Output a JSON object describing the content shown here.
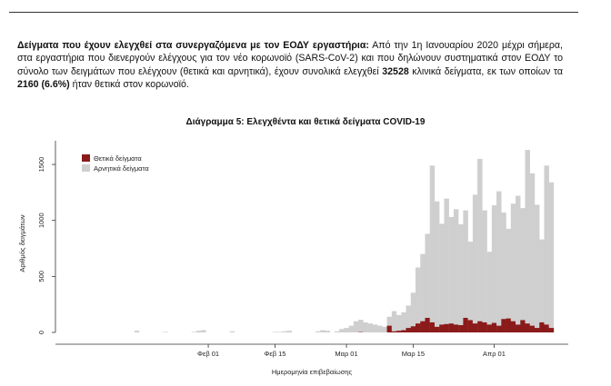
{
  "paragraph": {
    "heading": "Δείγματα που έχουν ελεγχθεί στα συνεργαζόμενα με τον ΕΟΔΥ εργαστήρια:",
    "text1": " Από την 1η Ιανουαρίου 2020 μέχρι σήμερα, στα εργαστήρια που διενεργούν ελέγχους για τον νέο κορωνοϊό (SARS-CoV-2) και που δηλώνουν συστηματικά στον ΕΟΔΥ το σύνολο των δειγμάτων που ελέγχουν (θετικά και αρνητικά), έχουν συνολικά ελεγχθεί ",
    "total": "32528",
    "text2": " κλινικά δείγματα, εκ των οποίων τα ",
    "positive": "2160 (6.6%)",
    "text3": " ήταν θετικά στον κορωνοϊό."
  },
  "chart_data": {
    "type": "bar",
    "title": "Διάγραμμα 5: Ελεγχθέντα και θετικά δείγματα COVID-19",
    "xlabel": "Ημερομηνία επιβεβαίωσης",
    "ylabel": "Αριθμός δειγμάτων",
    "ylim": [
      0,
      1700
    ],
    "yticks": [
      "0",
      "500",
      "1000",
      "1500"
    ],
    "xticks": [
      "Φεβ 01",
      "Φεβ 15",
      "Μαρ 01",
      "Μαρ 15",
      "Απρ 01"
    ],
    "legend": {
      "position": "top-left",
      "entries": [
        "Θετικά δείγματα",
        "Αρνητικά δείγματα"
      ]
    },
    "colors": {
      "positive": "#8b1a1a",
      "negative": "#cfcfcf"
    },
    "stacked": true,
    "series": [
      {
        "name": "Θετικά δείγματα",
        "values": [
          0,
          0,
          0,
          0,
          0,
          0,
          0,
          0,
          0,
          0,
          0,
          0,
          0,
          0,
          0,
          0,
          0,
          0,
          0,
          0,
          0,
          0,
          0,
          0,
          0,
          0,
          0,
          0,
          0,
          0,
          0,
          0,
          0,
          0,
          0,
          0,
          0,
          0,
          0,
          0,
          0,
          0,
          0,
          0,
          0,
          0,
          0,
          0,
          0,
          0,
          0,
          0,
          0,
          0,
          0,
          0,
          0,
          0,
          0,
          0,
          0,
          0,
          0,
          3,
          0,
          0,
          0,
          0,
          0,
          60,
          10,
          15,
          20,
          40,
          55,
          80,
          100,
          130,
          90,
          50,
          70,
          75,
          80,
          70,
          65,
          130,
          110,
          80,
          100,
          90,
          70,
          85,
          60,
          120,
          125,
          100,
          70,
          110,
          80,
          60,
          40,
          90,
          70,
          40
        ]
      },
      {
        "name": "Αρνητικά δείγματα",
        "values": [
          0,
          0,
          0,
          0,
          0,
          0,
          0,
          0,
          0,
          0,
          0,
          0,
          0,
          0,
          0,
          0,
          15,
          0,
          0,
          0,
          0,
          0,
          5,
          0,
          0,
          0,
          0,
          0,
          5,
          15,
          20,
          0,
          0,
          0,
          0,
          0,
          10,
          0,
          0,
          0,
          0,
          0,
          0,
          0,
          0,
          5,
          5,
          10,
          15,
          0,
          0,
          0,
          0,
          0,
          10,
          20,
          15,
          0,
          10,
          30,
          40,
          60,
          100,
          110,
          90,
          80,
          70,
          60,
          50,
          80,
          180,
          140,
          160,
          200,
          300,
          500,
          600,
          750,
          1400,
          1120,
          900,
          1120,
          950,
          1030,
          900,
          960,
          700,
          1150,
          1450,
          1000,
          650,
          1050,
          1200,
          950,
          800,
          1050,
          1150,
          1000,
          1550,
          1360,
          1100,
          740,
          1420,
          1300
        ]
      }
    ]
  }
}
